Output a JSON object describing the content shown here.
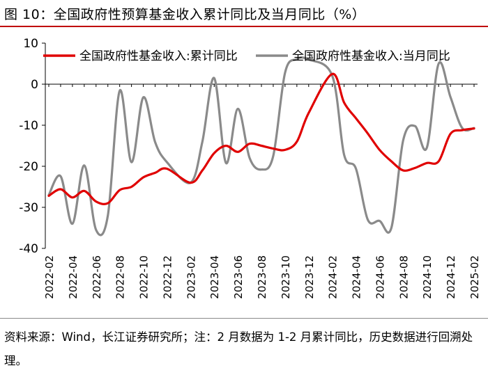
{
  "figure": {
    "title": "图 10：全国政府性预算基金收入累计同比及当月同比（%）",
    "source": "资料来源：Wind，长江证券研究所；注：2 月数据为 1-2 月累计同比，历史数据进行回溯处理。"
  },
  "chart_data": {
    "type": "line",
    "title": "全国政府性预算基金收入累计同比及当月同比（%）",
    "xlabel": "",
    "ylabel": "%",
    "ylim": [
      -40,
      10
    ],
    "yticks": [
      10,
      0,
      -10,
      -20,
      -30,
      -40
    ],
    "legend_position": "top",
    "categories": [
      "2022-02",
      "2022-03",
      "2022-04",
      "2022-05",
      "2022-06",
      "2022-07",
      "2022-08",
      "2022-09",
      "2022-10",
      "2022-11",
      "2022-12",
      "2023-01",
      "2023-02",
      "2023-03",
      "2023-04",
      "2023-05",
      "2023-06",
      "2023-07",
      "2023-08",
      "2023-09",
      "2023-10",
      "2023-11",
      "2023-12",
      "2024-01",
      "2024-02",
      "2024-03",
      "2024-04",
      "2024-05",
      "2024-06",
      "2024-07",
      "2024-08",
      "2024-09",
      "2024-10",
      "2024-11",
      "2024-12",
      "2025-01",
      "2025-02"
    ],
    "tick_labels": [
      "2022-02",
      "2022-04",
      "2022-06",
      "2022-08",
      "2022-10",
      "2022-12",
      "2023-02",
      "2023-04",
      "2023-06",
      "2023-08",
      "2023-10",
      "2023-12",
      "2024-02",
      "2024-04",
      "2024-06",
      "2024-08",
      "2024-10",
      "2024-12",
      "2025-02"
    ],
    "series": [
      {
        "name": "全国政府性基金收入:累计同比",
        "color": "#e00000",
        "values": [
          -27.2,
          -25.6,
          -27.6,
          -26.0,
          -28.6,
          -29.0,
          -25.8,
          -25.0,
          -22.7,
          -21.6,
          -20.6,
          null,
          -24.0,
          -21.0,
          -16.8,
          -15.0,
          -16.5,
          -14.5,
          -15.0,
          -15.7,
          -16.0,
          -14.0,
          -7.0,
          null,
          2.5,
          -4.5,
          -8.3,
          -12.0,
          -16.0,
          -18.8,
          -21.0,
          -20.4,
          -19.2,
          -18.8,
          -12.1,
          -11.2,
          -10.8
        ]
      },
      {
        "name": "全国政府性基金收入:当月同比",
        "color": "#8a8a8a",
        "values": [
          -27.0,
          -22.4,
          -34.0,
          -19.8,
          -35.5,
          -32.0,
          -1.6,
          -19.0,
          -3.2,
          -14.1,
          -19.0,
          null,
          -24.0,
          -14.0,
          1.5,
          -19.2,
          -6.0,
          -18.0,
          -20.8,
          -17.5,
          2.8,
          6.1,
          6.0,
          null,
          2.0,
          -17.2,
          -20.6,
          -33.0,
          -33.3,
          -35.0,
          -13.7,
          -10.2,
          -15.5,
          5.0,
          -3.1,
          -10.7,
          -10.7
        ]
      }
    ]
  }
}
